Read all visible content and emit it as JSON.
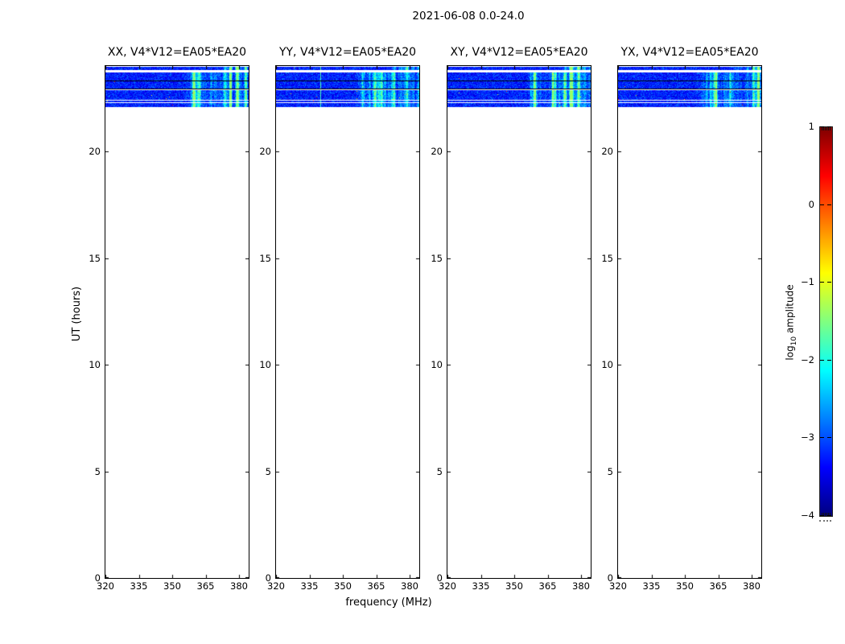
{
  "chart_data": {
    "type": "heatmap",
    "suptitle": "2021-06-08 0.0-24.0",
    "xlabel": "frequency (MHz)",
    "ylabel": "UT (hours)",
    "x_ticks_mhz": [
      320,
      335,
      350,
      365,
      380
    ],
    "x_range_mhz": [
      320,
      384.3
    ],
    "y_ticks_hours": [
      0,
      5,
      10,
      15,
      20
    ],
    "y_range_hours": [
      0,
      24
    ],
    "panels": [
      {
        "pol": "XX",
        "title": "XX, V4*V12=EA05*EA20",
        "seed": 11,
        "bright_lines_mhz": []
      },
      {
        "pol": "YY",
        "title": "YY, V4*V12=EA05*EA20",
        "seed": 23,
        "bright_lines_mhz": [
          340
        ]
      },
      {
        "pol": "XY",
        "title": "XY, V4*V12=EA05*EA20",
        "seed": 37,
        "bright_lines_mhz": []
      },
      {
        "pol": "YX",
        "title": "YX, V4*V12=EA05*EA20",
        "seed": 51,
        "bright_lines_mhz": []
      }
    ],
    "colorbar": {
      "label_prefix": "log",
      "label_sub": "10",
      "label_suffix": " amplitude",
      "ticks": [
        1,
        0,
        -1,
        -2,
        -3,
        -4
      ],
      "vmin": -4,
      "vmax": 1,
      "cmap": "jet",
      "gradient_stops_top_to_bottom": [
        "#7f0000",
        "#ff0000",
        "#ff8000",
        "#ffff00",
        "#80ff80",
        "#00ffff",
        "#0080ff",
        "#0000ff",
        "#00007f"
      ]
    },
    "data_summary": {
      "observed_time_blocks_ut": [
        {
          "t0": 23.81,
          "t1": 23.98,
          "bright_start_mhz": 373,
          "boost": 1.15
        },
        {
          "t0": 23.32,
          "t1": 23.7,
          "bright_start_mhz": 357,
          "boost": 1.0
        },
        {
          "t0": 22.94,
          "t1": 23.28,
          "bright_start_mhz": 357,
          "boost": 1.0
        },
        {
          "t0": 22.42,
          "t1": 22.86,
          "bright_start_mhz": 357,
          "boost": 1.1
        },
        {
          "t0": 22.3,
          "t1": 22.38,
          "bright_start_mhz": 357,
          "boost": 0.85
        },
        {
          "t0": 22.08,
          "t1": 22.26,
          "bright_start_mhz": 357,
          "boost": 1.0
        }
      ],
      "divider_lines_ut": [
        23.302,
        22.925
      ],
      "no_data_region": "white below UT 22.08",
      "background_log10_amplitude": [
        -3.7,
        -2.9
      ],
      "rfi_bright_freq_range_mhz": [
        357,
        384
      ],
      "rfi_log10_amplitude": [
        -2.2,
        -1.4
      ],
      "hot_pixels_per_panel": 8,
      "hot_pixel_log10_amplitude": [
        -1.1,
        0.5
      ]
    }
  }
}
